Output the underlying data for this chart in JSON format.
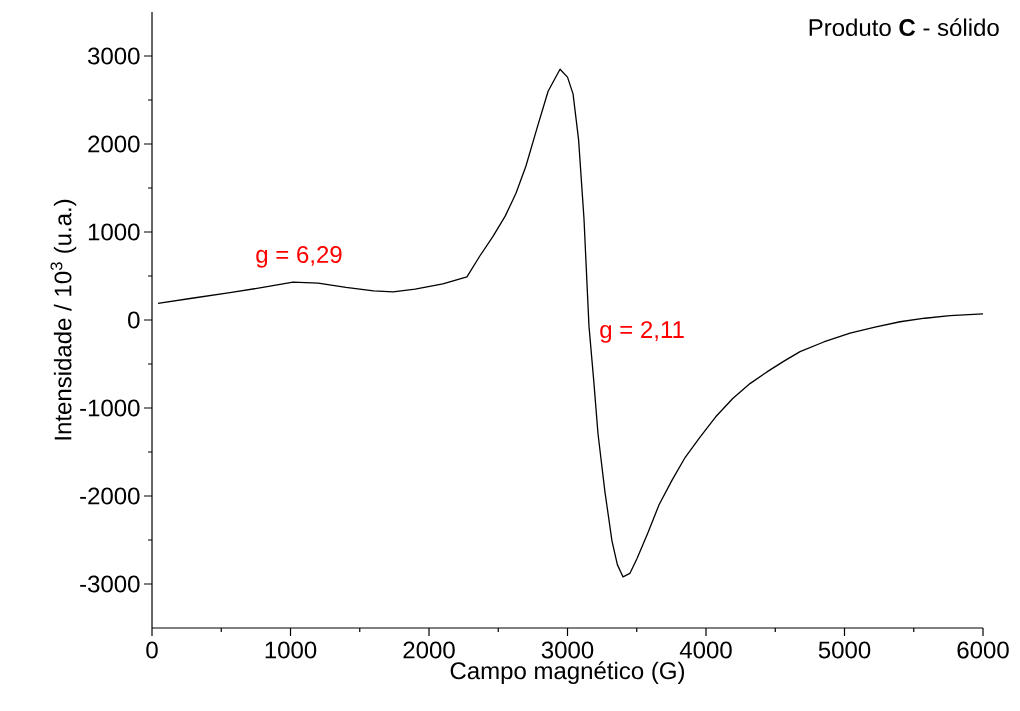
{
  "chart_data": {
    "type": "line",
    "title": "Produto **C** - sólido",
    "xlabel": "Campo magnético (G)",
    "ylabel": "Intensidade / 10$^{3}$ (u.a.)",
    "xlim": [
      0,
      6000
    ],
    "ylim": [
      -3500,
      3500
    ],
    "xticks": [
      0,
      1000,
      2000,
      3000,
      4000,
      5000,
      6000
    ],
    "yticks": [
      -3000,
      -2000,
      -1000,
      0,
      1000,
      2000,
      3000
    ],
    "annotations": [
      {
        "text": "g = 6,29",
        "x": 1018,
        "y": 433
      },
      {
        "text": "g = 2,11",
        "x": 3170,
        "y": 0
      }
    ],
    "series": [
      {
        "color": "#000000",
        "line_style": "solid",
        "x": [
          43,
          300,
          563,
          800,
          1018,
          1200,
          1400,
          1600,
          1740,
          1900,
          2100,
          2274,
          2368,
          2462,
          2550,
          2628,
          2700,
          2780,
          2860,
          2946,
          3000,
          3040,
          3080,
          3119,
          3155,
          3190,
          3220,
          3270,
          3321,
          3360,
          3401,
          3450,
          3502,
          3580,
          3661,
          3755,
          3850,
          3957,
          4070,
          4195,
          4320,
          4440,
          4560,
          4679,
          4850,
          5040,
          5220,
          5401,
          5580,
          5762,
          6000
        ],
        "values": [
          190,
          250,
          310,
          370,
          430,
          420,
          370,
          330,
          320,
          350,
          410,
          490,
          730,
          950,
          1180,
          1440,
          1750,
          2180,
          2600,
          2850,
          2760,
          2570,
          2050,
          1150,
          -70,
          -700,
          -1290,
          -1950,
          -2510,
          -2780,
          -2920,
          -2880,
          -2710,
          -2420,
          -2100,
          -1820,
          -1560,
          -1330,
          -1100,
          -890,
          -720,
          -590,
          -470,
          -360,
          -250,
          -150,
          -80,
          -20,
          20,
          50,
          70
        ]
      }
    ]
  }
}
